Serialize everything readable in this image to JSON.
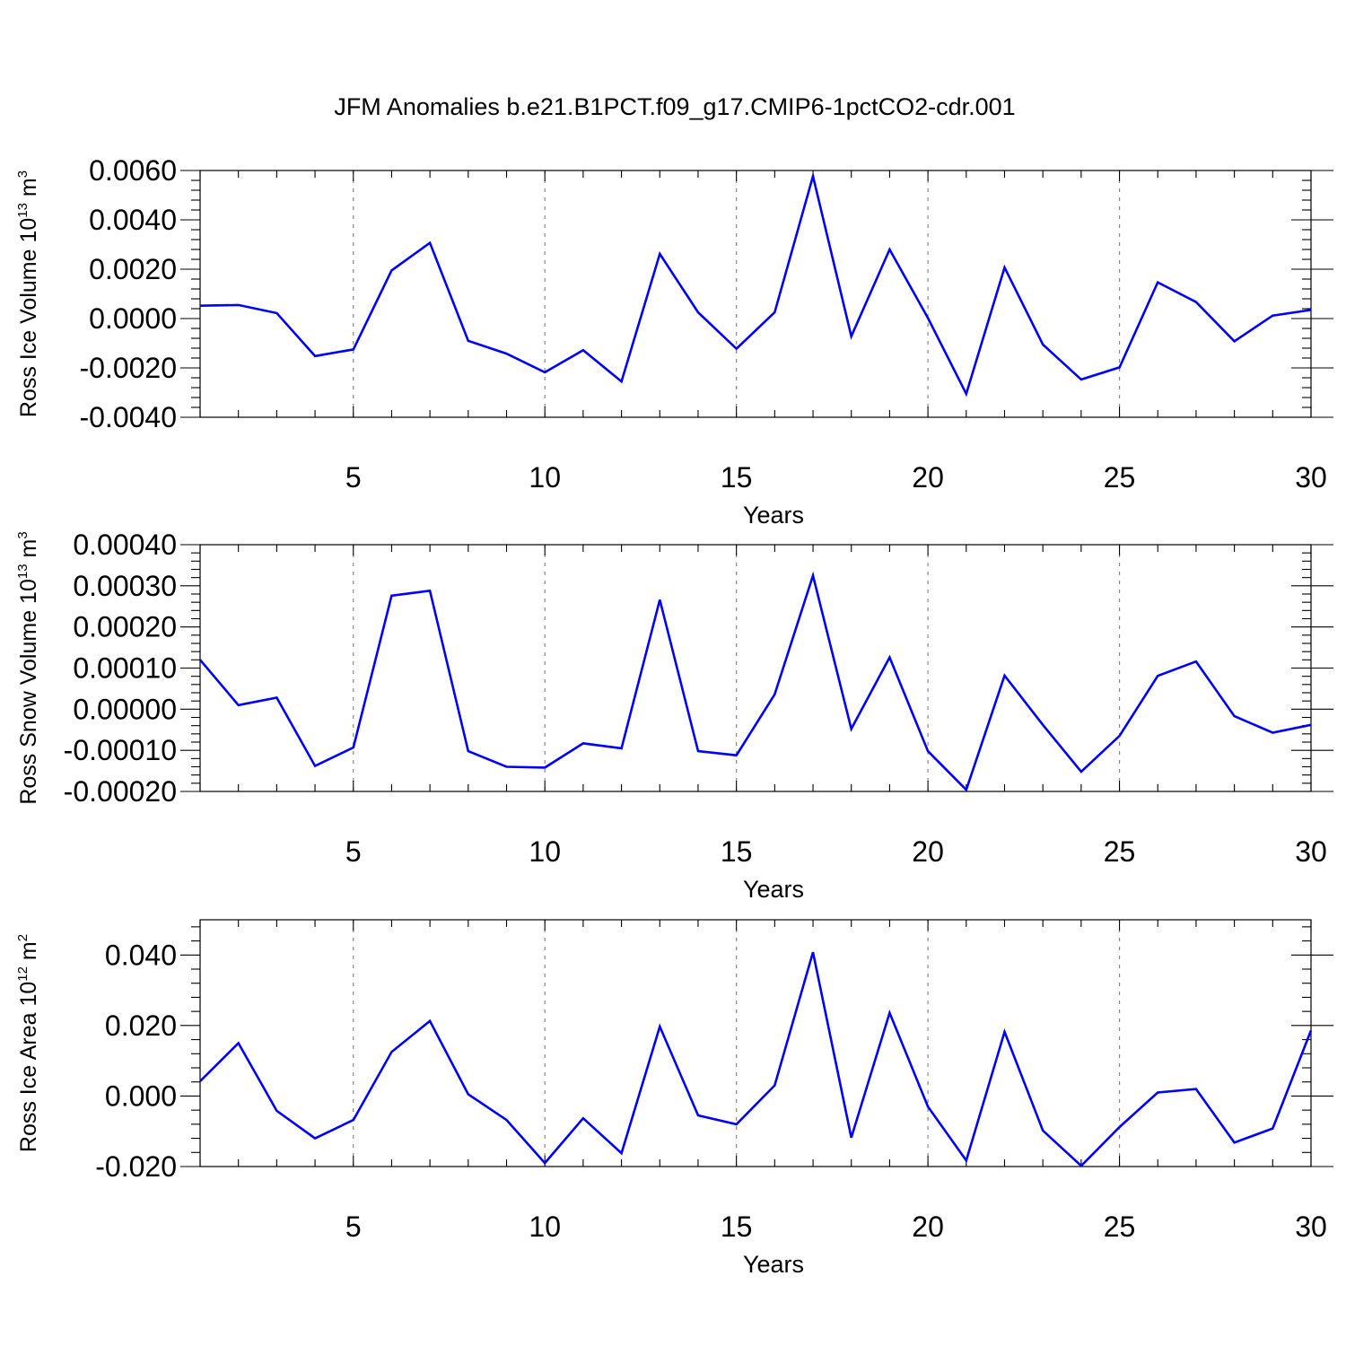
{
  "title": "JFM Anomalies b.e21.B1PCT.f09_g17.CMIP6-1pctCO2-cdr.001",
  "colors": {
    "line": "#0000ff",
    "grid": "#888888"
  },
  "chart_data": [
    {
      "type": "line",
      "xlabel": "Years",
      "ylabel": {
        "text": "Ross Ice Volume 10",
        "sup": "13",
        "unit_pre": " m",
        "unit_sup": "3"
      },
      "xlim": [
        1,
        30
      ],
      "ylim": [
        -0.004,
        0.006
      ],
      "yticks": [
        -0.004,
        -0.002,
        0.0,
        0.002,
        0.004,
        0.006
      ],
      "ytick_labels": [
        "-0.0040",
        "-0.0020",
        "0.0000",
        "0.0020",
        "0.0040",
        "0.0060"
      ],
      "xticks": [
        5,
        10,
        15,
        20,
        25,
        30
      ],
      "xtick_labels": [
        "5",
        "10",
        "15",
        "20",
        "25",
        "30"
      ],
      "grid": "vertical dashed at major x ticks",
      "x": [
        1,
        2,
        3,
        4,
        5,
        6,
        7,
        8,
        9,
        10,
        11,
        12,
        13,
        14,
        15,
        16,
        17,
        18,
        19,
        20,
        21,
        22,
        23,
        24,
        25,
        26,
        27,
        28,
        29,
        30
      ],
      "y": [
        0.00052,
        0.00055,
        0.00022,
        -0.00152,
        -0.00125,
        0.00195,
        0.00307,
        -0.0009,
        -0.00142,
        -0.00218,
        -0.00128,
        -0.00255,
        0.00262,
        0.00025,
        -0.00122,
        0.00025,
        0.00577,
        -0.00072,
        0.0028,
        2e-05,
        -0.00305,
        0.00207,
        -0.00105,
        -0.00247,
        -0.00198,
        0.00147,
        0.00067,
        -0.00092,
        0.00012,
        0.00035
      ]
    },
    {
      "type": "line",
      "xlabel": "Years",
      "ylabel": {
        "text": "Ross Snow Volume 10",
        "sup": "13",
        "unit_pre": " m",
        "unit_sup": "3"
      },
      "xlim": [
        1,
        30
      ],
      "ylim": [
        -0.0002,
        0.0004
      ],
      "yticks": [
        -0.0002,
        -0.0001,
        0.0,
        0.0001,
        0.0002,
        0.0003,
        0.0004
      ],
      "ytick_labels": [
        "-0.00020",
        "-0.00010",
        "0.00000",
        "0.00010",
        "0.00020",
        "0.00030",
        "0.00040"
      ],
      "xticks": [
        5,
        10,
        15,
        20,
        25,
        30
      ],
      "xtick_labels": [
        "5",
        "10",
        "15",
        "20",
        "25",
        "30"
      ],
      "grid": "vertical dashed at major x ticks",
      "x": [
        1,
        2,
        3,
        4,
        5,
        6,
        7,
        8,
        9,
        10,
        11,
        12,
        13,
        14,
        15,
        16,
        17,
        18,
        19,
        20,
        21,
        22,
        23,
        24,
        25,
        26,
        27,
        28,
        29,
        30
      ],
      "y": [
        0.00012,
        1e-05,
        2.8e-05,
        -0.000138,
        -9.3e-05,
        0.000276,
        0.000288,
        -0.000102,
        -0.00014,
        -0.000142,
        -8.3e-05,
        -9.5e-05,
        0.000266,
        -0.000102,
        -0.000112,
        3.6e-05,
        0.000325,
        -4.8e-05,
        0.000126,
        -0.000102,
        -0.000196,
        8.2e-05,
        -3.8e-05,
        -0.000152,
        -6.5e-05,
        8.1e-05,
        0.000116,
        -1.7e-05,
        -5.7e-05,
        -3.8e-05
      ]
    },
    {
      "type": "line",
      "xlabel": "Years",
      "ylabel": {
        "text": "Ross Ice Area 10",
        "sup": "12",
        "unit_pre": " m",
        "unit_sup": "2"
      },
      "xlim": [
        1,
        30
      ],
      "ylim": [
        -0.02,
        0.05
      ],
      "yticks": [
        -0.02,
        0.0,
        0.02,
        0.04
      ],
      "ytick_labels": [
        "-0.020",
        "0.000",
        "0.020",
        "0.040"
      ],
      "xticks": [
        5,
        10,
        15,
        20,
        25,
        30
      ],
      "xtick_labels": [
        "5",
        "10",
        "15",
        "20",
        "25",
        "30"
      ],
      "grid": "vertical dashed at major x ticks",
      "x": [
        1,
        2,
        3,
        4,
        5,
        6,
        7,
        8,
        9,
        10,
        11,
        12,
        13,
        14,
        15,
        16,
        17,
        18,
        19,
        20,
        21,
        22,
        23,
        24,
        25,
        26,
        27,
        28,
        29,
        30
      ],
      "y": [
        0.0042,
        0.015,
        -0.0042,
        -0.012,
        -0.0068,
        0.0125,
        0.0213,
        0.0005,
        -0.0068,
        -0.019,
        -0.0063,
        -0.0162,
        0.0197,
        -0.0055,
        -0.008,
        0.003,
        0.0408,
        -0.0118,
        0.0236,
        -0.003,
        -0.0183,
        0.0182,
        -0.0098,
        -0.0198,
        -0.0088,
        0.001,
        0.002,
        -0.0132,
        -0.0092,
        0.0186
      ]
    }
  ]
}
